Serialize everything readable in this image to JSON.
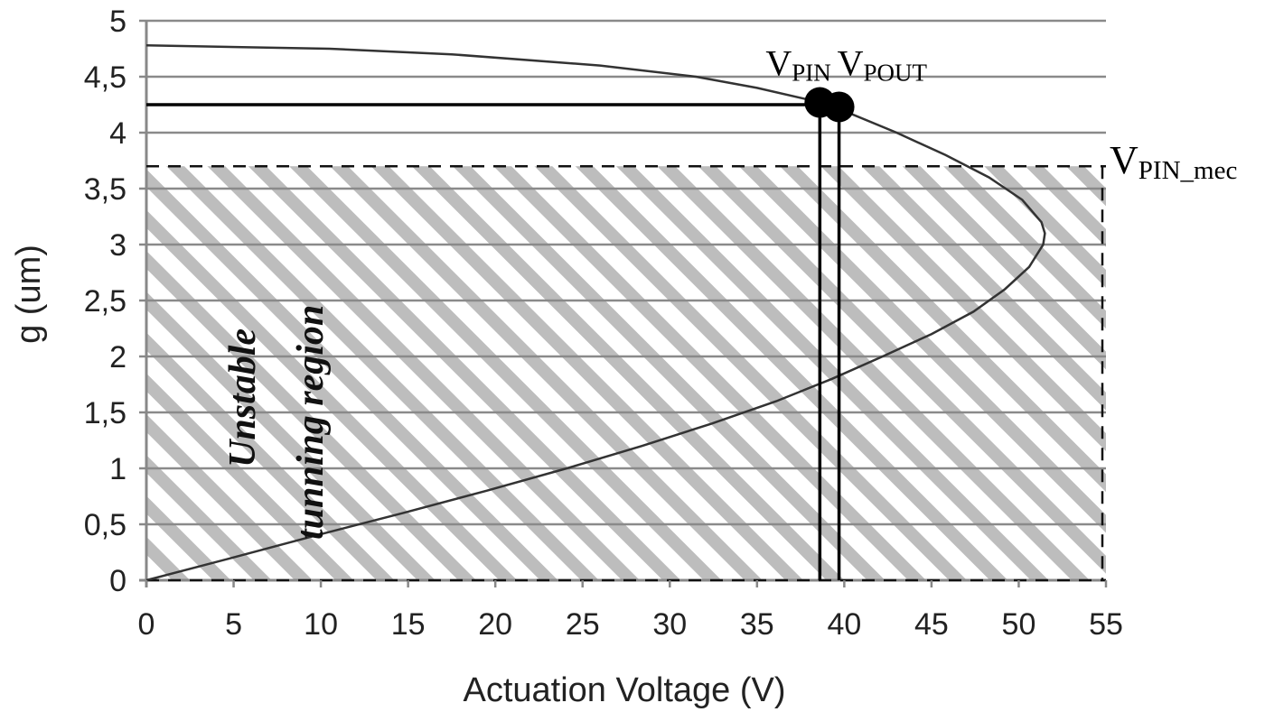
{
  "chart_data": {
    "type": "line",
    "xlabel": "Actuation Voltage (V)",
    "ylabel": "g (um)",
    "xlim": [
      0,
      55
    ],
    "ylim": [
      0,
      5
    ],
    "x_ticks": [
      "0",
      "5",
      "10",
      "15",
      "20",
      "25",
      "30",
      "35",
      "40",
      "45",
      "50",
      "55"
    ],
    "y_ticks": [
      "0",
      "0,5",
      "1",
      "1,5",
      "2",
      "2,5",
      "3",
      "3,5",
      "4",
      "4,5",
      "5"
    ],
    "grid": "horizontal",
    "curve": {
      "g": [
        4.78,
        4.75,
        4.7,
        4.6,
        4.5,
        4.4,
        4.3,
        4.25,
        4.2,
        4.0,
        3.8,
        3.6,
        3.4,
        3.2,
        3.1,
        3.0,
        2.8,
        2.6,
        2.4,
        2.2,
        2.0,
        1.8,
        1.6,
        1.4,
        1.2,
        1.0,
        0.8,
        0.6,
        0.4,
        0.2,
        0.0
      ],
      "v": [
        0,
        10.5,
        17.5,
        26,
        31.5,
        35,
        37.8,
        38.9,
        39.9,
        43,
        45.8,
        48.3,
        50.2,
        51.3,
        51.5,
        51.4,
        50.6,
        49.2,
        47.4,
        45,
        42.2,
        39.3,
        36.1,
        32.4,
        28.4,
        24.1,
        19.5,
        14.7,
        9.7,
        4.9,
        0
      ]
    },
    "threshold_lines": [
      {
        "label": "V_PIN_mec",
        "g": 3.7
      }
    ],
    "operating_points": [
      {
        "name": "V_PIN",
        "v": 38.6,
        "g": 4.27
      },
      {
        "name": "V_POUT",
        "v": 39.7,
        "g": 4.23
      }
    ],
    "hline_to_axis": {
      "g": 4.25,
      "v_end": 38.6
    },
    "shaded_region": {
      "v_range": [
        0,
        55
      ],
      "g_range": [
        0,
        3.7
      ],
      "pattern": "diagonal-hatch"
    },
    "annotations": {
      "vpin_main": "V",
      "vpin_sub": "PIN",
      "vpout_main": "V",
      "vpout_sub": "POUT",
      "vpinmec_main": "V",
      "vpinmec_sub": "PIN_mec",
      "region_line1": "Unstable",
      "region_line2": "tunning region"
    }
  }
}
